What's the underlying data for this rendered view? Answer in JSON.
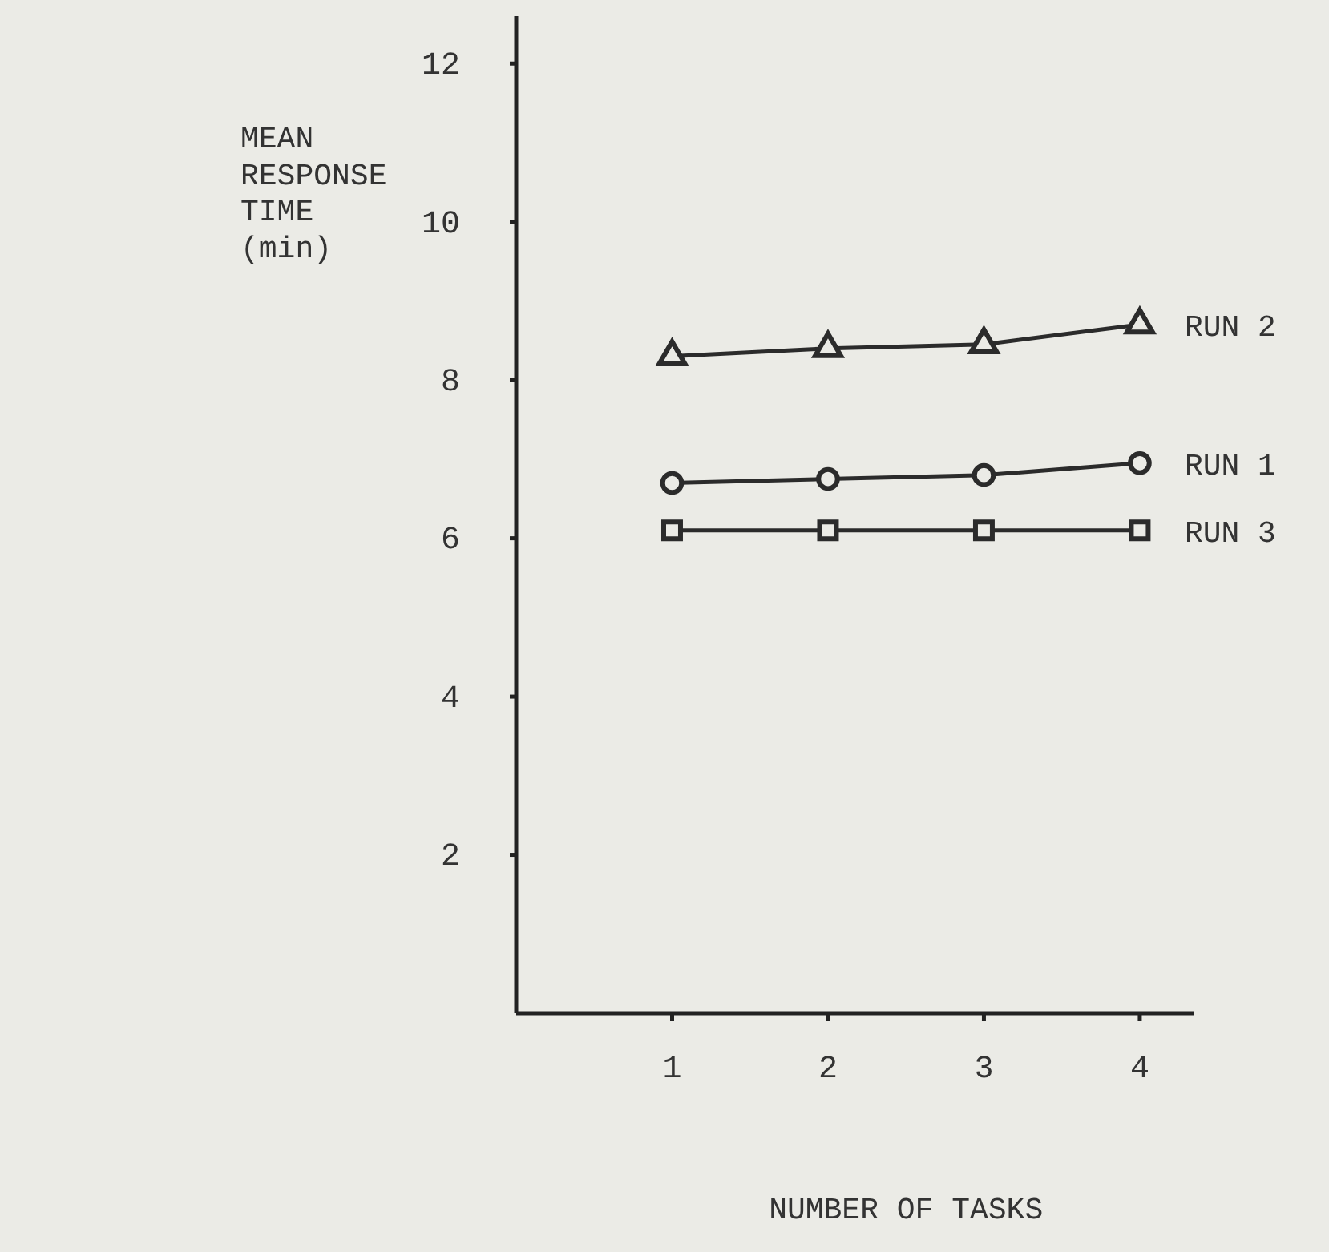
{
  "chart_data": {
    "type": "line",
    "xlabel": "NUMBER OF TASKS",
    "ylabel": "MEAN RESPONSE TIME (min)",
    "x": [
      1,
      2,
      3,
      4
    ],
    "xlim": [
      0,
      4.35
    ],
    "xticks": [
      1,
      2,
      3,
      4
    ],
    "ylim": [
      0,
      12.6
    ],
    "yticks": [
      2,
      4,
      6,
      8,
      10,
      12
    ],
    "grid": false,
    "legend": false,
    "line_style": "solid",
    "series": [
      {
        "name": "RUN 2",
        "color": "#2b2b2b",
        "marker": "triangle",
        "values": [
          8.3,
          8.4,
          8.45,
          8.7
        ]
      },
      {
        "name": "RUN 1",
        "color": "#2b2b2b",
        "marker": "circle",
        "values": [
          6.7,
          6.75,
          6.8,
          6.95
        ]
      },
      {
        "name": "RUN 3",
        "color": "#2b2b2b",
        "marker": "square",
        "values": [
          6.1,
          6.1,
          6.1,
          6.1
        ]
      }
    ]
  }
}
